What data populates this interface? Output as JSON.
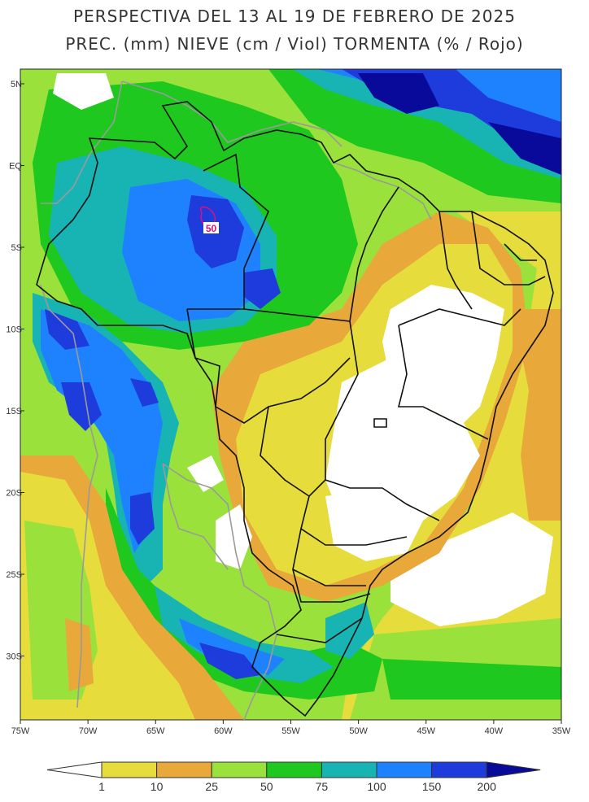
{
  "title_line1": "PERSPECTIVA DEL 13 AL 19 DE FEBRERO DE 2025",
  "title_line2": "PREC. (mm) NIEVE (cm / Viol) TORMENTA (% / Rojo)",
  "lon_ticks": [
    "75W",
    "70W",
    "65W",
    "60W",
    "55W",
    "50W",
    "45W",
    "40W",
    "35W"
  ],
  "lat_ticks": [
    "5N",
    "EQ",
    "5S",
    "10S",
    "15S",
    "20S",
    "25S",
    "30S"
  ],
  "contour_label": "50",
  "legend": {
    "breaks": [
      "1",
      "10",
      "25",
      "50",
      "75",
      "100",
      "150",
      "200"
    ],
    "colors": [
      "#ffffff",
      "#e6dc3c",
      "#e8a83a",
      "#9ae13c",
      "#1ec81e",
      "#18b4b4",
      "#1e82ff",
      "#1e3cdc",
      "#0a0a9a"
    ]
  },
  "precip_colors": {
    "none": "#ffffff",
    "c1_10": "#e6dc3c",
    "c10_25": "#e8a83a",
    "c25_50": "#9ae13c",
    "c50_75": "#1ec81e",
    "c75_100": "#18b4b4",
    "c100_150": "#1e82ff",
    "c150_200": "#1e3cdc",
    "c200": "#0a0a9a"
  },
  "storm_contour_color": "#e0107a"
}
